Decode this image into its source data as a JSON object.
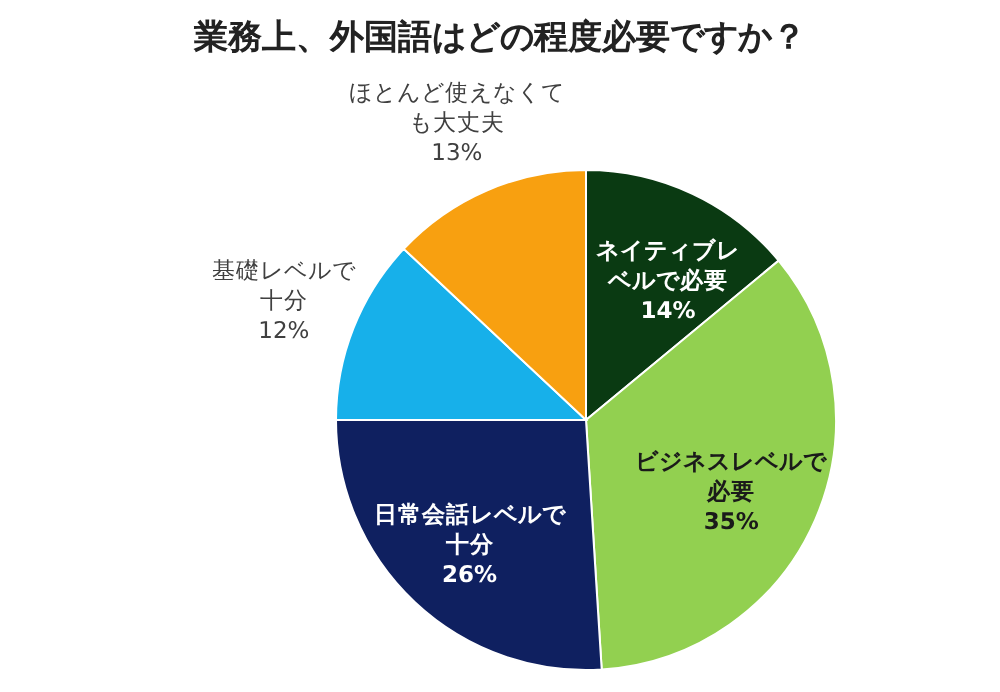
{
  "chart_data": {
    "type": "pie",
    "title": "業務上、外国語はどの程度必要ですか？",
    "categories": [
      "ネイティブレベルで必要",
      "ビジネスレベルで必要",
      "日常会話レベルで十分",
      "基礎レベルで十分",
      "ほとんど使えなくても大丈夫"
    ],
    "values": [
      14,
      35,
      26,
      12,
      13
    ],
    "colors": [
      "#0a3a12",
      "#92d050",
      "#0f2060",
      "#17b0ea",
      "#f8a010"
    ],
    "value_labels": [
      "14%",
      "35%",
      "26%",
      "12%",
      "13%"
    ]
  }
}
